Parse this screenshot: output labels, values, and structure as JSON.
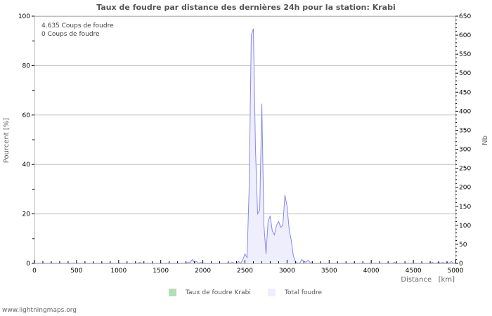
{
  "title": "Taux de foudre par distance des dernières 24h pour la station: Krabi",
  "info": {
    "line1": "4.635  Coups de foudre",
    "line2": "0  Coups de foudre"
  },
  "legend": {
    "item1": "Taux de foudre Krabi",
    "item2": "Total foudre",
    "color1": "#b3dfb3",
    "color2": "#eeeefc"
  },
  "footer": "www.lightningmaps.org",
  "colors": {
    "line": "#8888ee",
    "fill": "#eeeefc",
    "grid": "#c0c0c0"
  },
  "chart_data": {
    "type": "area",
    "title": "Taux de foudre par distance des dernières 24h pour la station: Krabi",
    "xlabel": "Distance   [km]",
    "ylabel": "Pourcent   [%]",
    "y2label": "Nb",
    "xlim": [
      0,
      5000
    ],
    "ylim": [
      0,
      100
    ],
    "y2lim": [
      0,
      650
    ],
    "x_ticks": [
      0,
      500,
      1000,
      1500,
      2000,
      2500,
      3000,
      3500,
      4000,
      4500,
      5000
    ],
    "y_ticks": [
      0,
      20,
      40,
      60,
      80,
      100
    ],
    "y2_ticks": [
      0,
      50,
      100,
      150,
      200,
      250,
      300,
      350,
      400,
      450,
      500,
      550,
      600,
      650
    ],
    "grid": true,
    "legend_position": "bottom",
    "series": [
      {
        "name": "Taux de foudre Krabi",
        "axis": "left",
        "x": [],
        "values": []
      },
      {
        "name": "Total foudre",
        "axis": "right",
        "x": [
          1225,
          1250,
          1275,
          1800,
          1825,
          1850,
          1875,
          1900,
          1925,
          1950,
          1975,
          2325,
          2350,
          2375,
          2400,
          2425,
          2450,
          2475,
          2500,
          2525,
          2550,
          2575,
          2600,
          2625,
          2650,
          2675,
          2700,
          2725,
          2750,
          2775,
          2800,
          2825,
          2850,
          2875,
          2900,
          2925,
          2950,
          2975,
          3000,
          3025,
          3050,
          3075,
          3100,
          3125,
          3150,
          3175,
          3200,
          3225,
          3250,
          3275,
          3300,
          3325,
          4275,
          4300,
          4700,
          4725,
          4775,
          4800,
          4850,
          4900,
          4950
        ],
        "values": [
          0,
          3,
          0,
          0,
          3,
          2,
          10,
          3,
          5,
          0,
          3,
          0,
          3,
          0,
          0,
          5,
          0,
          10,
          25,
          15,
          200,
          600,
          617,
          300,
          130,
          140,
          420,
          100,
          25,
          110,
          125,
          85,
          75,
          100,
          110,
          95,
          100,
          180,
          150,
          90,
          60,
          20,
          5,
          0,
          0,
          10,
          5,
          3,
          8,
          2,
          0,
          0,
          3,
          0,
          0,
          3,
          0,
          3,
          3,
          3,
          5
        ]
      }
    ]
  }
}
